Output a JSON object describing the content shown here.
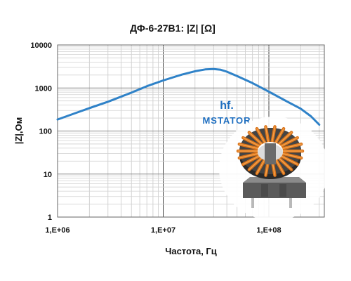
{
  "chart_data": {
    "type": "line",
    "title": "ДФ-6-27В1: |Z| [Ω]",
    "xlabel": "Частота, Гц",
    "ylabel": "|Z|,Ом",
    "x_scale": "log",
    "y_scale": "log",
    "xlim": [
      1000000,
      300000000
    ],
    "ylim": [
      1,
      10000
    ],
    "x_ticks": [
      {
        "value": 1000000,
        "label": "1,E+06"
      },
      {
        "value": 10000000,
        "label": "1,E+07"
      },
      {
        "value": 100000000,
        "label": "1,E+08"
      }
    ],
    "y_ticks": [
      {
        "value": 1,
        "label": "1"
      },
      {
        "value": 10,
        "label": "10"
      },
      {
        "value": 100,
        "label": "100"
      },
      {
        "value": 1000,
        "label": "1000"
      },
      {
        "value": 10000,
        "label": "10000"
      }
    ],
    "grid": true,
    "series": [
      {
        "color": "#2f82c8",
        "x": [
          1000000,
          1500000,
          2000000,
          3000000,
          5000000,
          7000000,
          10000000,
          15000000,
          20000000,
          25000000,
          30000000,
          35000000,
          40000000,
          50000000,
          70000000,
          100000000,
          150000000,
          200000000,
          250000000,
          300000000
        ],
        "y": [
          185,
          265,
          340,
          480,
          780,
          1100,
          1500,
          2050,
          2450,
          2700,
          2750,
          2650,
          2400,
          1900,
          1300,
          820,
          480,
          330,
          220,
          140
        ]
      }
    ]
  },
  "logo": {
    "mark": "hf.",
    "name": "MSTATOR",
    "color": "#1f6fc0"
  }
}
